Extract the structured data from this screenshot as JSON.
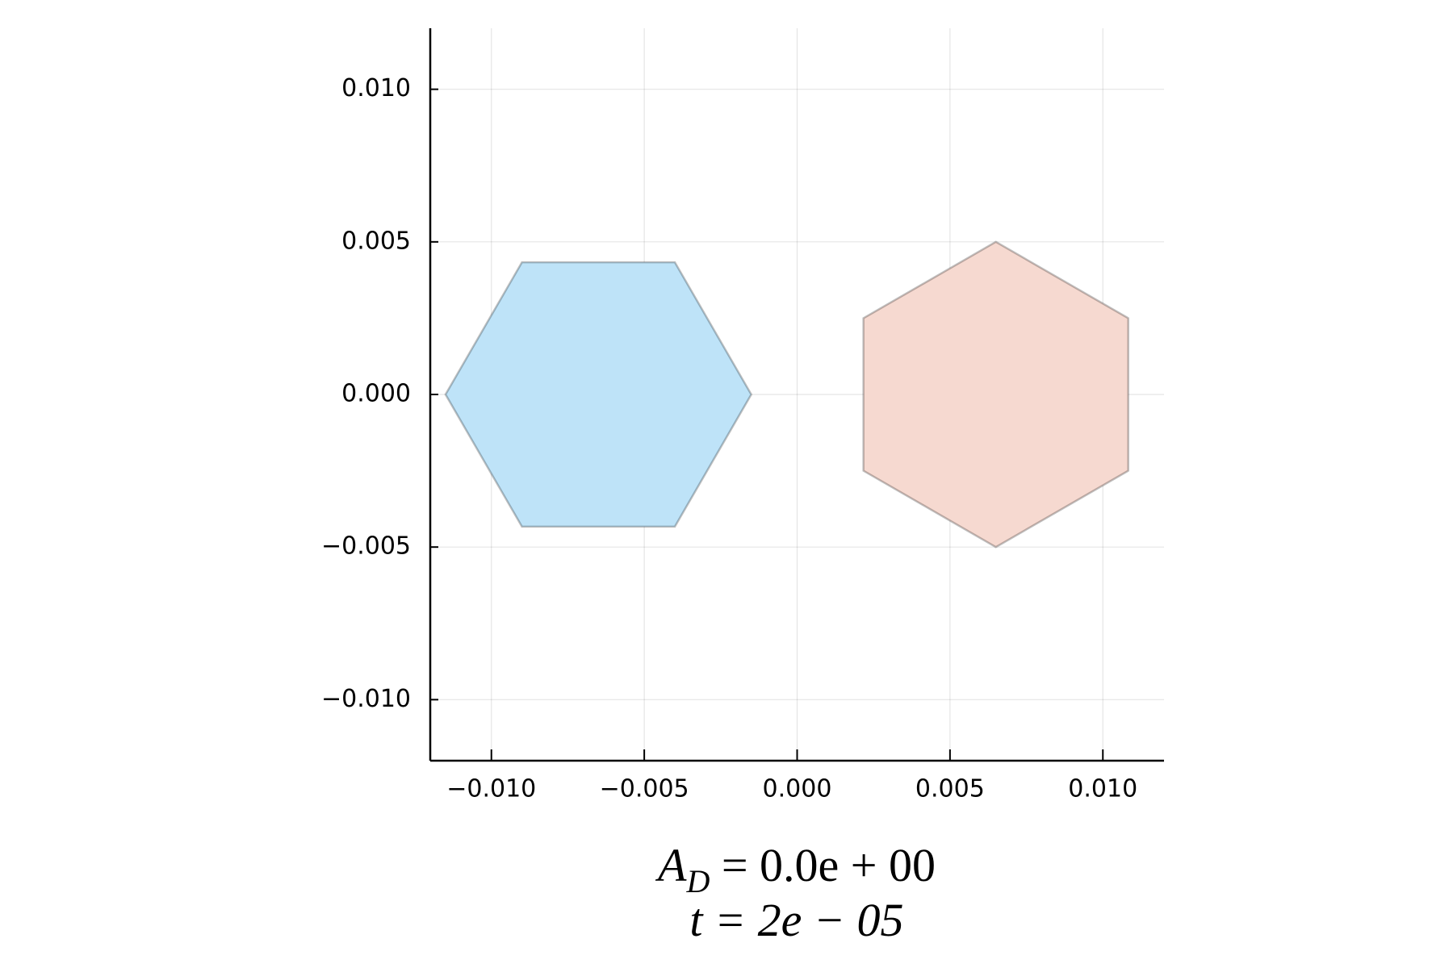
{
  "chart_data": {
    "type": "polygon",
    "xlim": [
      -0.012,
      0.012
    ],
    "ylim": [
      -0.012,
      0.012
    ],
    "xticks": [
      {
        "value": -0.01,
        "label": "−0.010"
      },
      {
        "value": -0.005,
        "label": "−0.005"
      },
      {
        "value": 0,
        "label": "0.000"
      },
      {
        "value": 0.005,
        "label": "0.005"
      },
      {
        "value": 0.01,
        "label": "0.010"
      }
    ],
    "yticks": [
      {
        "value": -0.01,
        "label": "−0.010"
      },
      {
        "value": -0.005,
        "label": "−0.005"
      },
      {
        "value": 0,
        "label": "0.000"
      },
      {
        "value": 0.005,
        "label": "0.005"
      },
      {
        "value": 0.01,
        "label": "0.010"
      }
    ],
    "grid": true,
    "series": [
      {
        "color": "#bee3f8",
        "x": [
          -0.0115,
          -0.009,
          -0.004,
          -0.0015,
          -0.004,
          -0.009
        ],
        "y": [
          0,
          0.00433,
          0.00433,
          0,
          -0.00433,
          -0.00433
        ]
      },
      {
        "color": "#f6d9d0",
        "x": [
          0.0065,
          0.01083,
          0.01083,
          0.0065,
          0.00217,
          0.00217
        ],
        "y": [
          0.005,
          0.0025,
          -0.0025,
          -0.005,
          -0.0025,
          0.0025
        ]
      }
    ],
    "xlabel_parts": [
      "A",
      "D",
      " = 0.0e + 00"
    ],
    "xlabel_line2": "t = 2e − 05"
  }
}
